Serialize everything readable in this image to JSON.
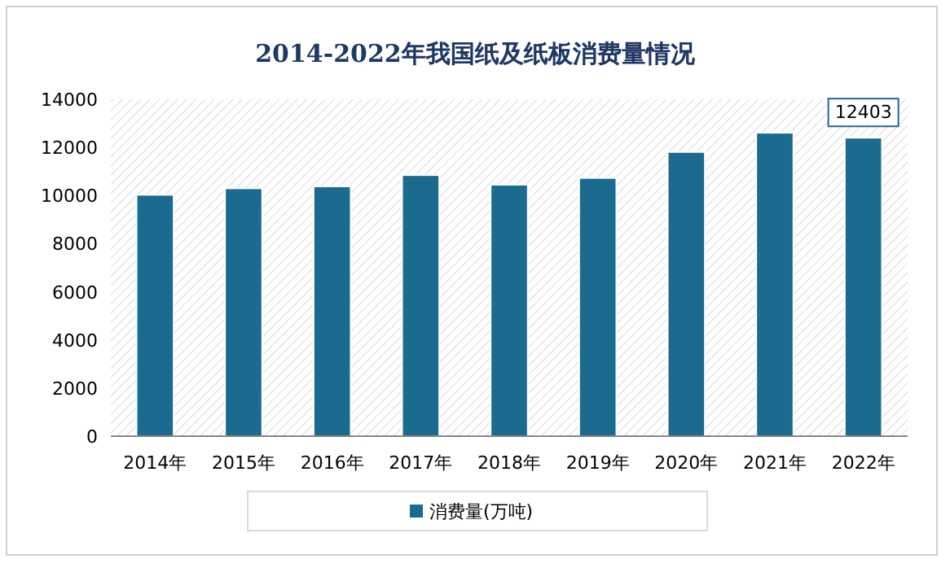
{
  "chart_data": {
    "type": "bar",
    "title": "2014-2022年我国纸及纸板消费量情况",
    "categories": [
      "2014年",
      "2015年",
      "2016年",
      "2017年",
      "2018年",
      "2019年",
      "2020年",
      "2021年",
      "2022年"
    ],
    "series": [
      {
        "name": "消费量(万吨)",
        "color": "#1b6a8f",
        "values": [
          10030,
          10300,
          10380,
          10850,
          10450,
          10730,
          11810,
          12610,
          12403
        ],
        "value_labels": [
          null,
          null,
          null,
          null,
          null,
          null,
          null,
          null,
          "12403"
        ]
      }
    ],
    "ylim": [
      0,
      14000
    ],
    "yticks": [
      0,
      2000,
      4000,
      6000,
      8000,
      10000,
      12000,
      14000
    ],
    "grid": false,
    "legend": "bottom"
  }
}
